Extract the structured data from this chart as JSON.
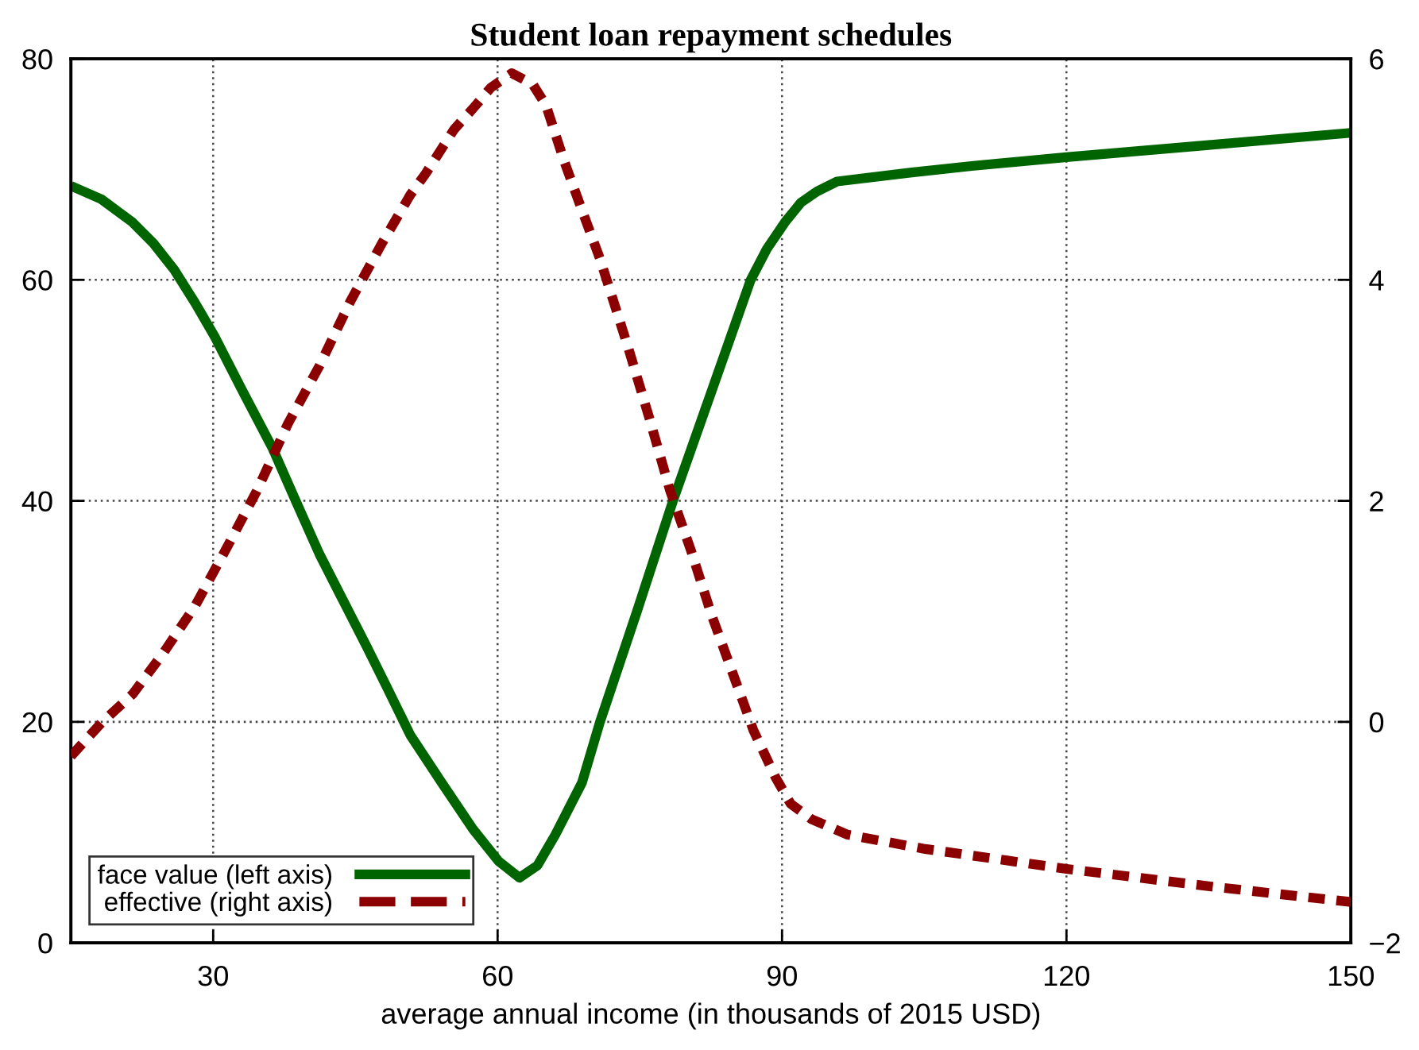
{
  "chart_data": {
    "type": "line",
    "title": "Student loan repayment schedules",
    "xlabel": "average annual income (in thousands of 2015 USD)",
    "xlim": [
      15,
      150
    ],
    "xticks": [
      30,
      60,
      90,
      120,
      150
    ],
    "ylim": [
      0,
      80
    ],
    "yticks": [
      0,
      20,
      40,
      60,
      80
    ],
    "y2lim": [
      -2,
      6
    ],
    "y2ticks": [
      {
        "value": -2,
        "label": "−2"
      },
      0,
      2,
      4,
      6
    ],
    "grid": true,
    "legend": "bottom left",
    "marker": "none",
    "series": [
      {
        "name": "face value (left axis)",
        "color": "#006400",
        "line_style": "solid",
        "x": [
          15,
          18.2,
          21.5,
          23.7,
          25.9,
          28.1,
          30.2,
          33.0,
          36.3,
          38.5,
          41.2,
          43.4,
          46.2,
          48.4,
          50.8,
          54.1,
          57.4,
          60.1,
          62.3,
          64.2,
          66.1,
          68.9,
          70.8,
          74.7,
          78.5,
          82.6,
          86.7,
          88.4,
          90.3,
          92.0,
          93.7,
          95.8,
          103.5,
          110,
          120,
          135,
          150
        ],
        "values": [
          68.5,
          67.3,
          65.2,
          63.3,
          60.9,
          57.9,
          54.8,
          50.1,
          44.7,
          40.4,
          35.2,
          31.5,
          26.8,
          23.0,
          18.8,
          14.5,
          10.3,
          7.4,
          5.9,
          7.0,
          9.8,
          14.5,
          20.0,
          30.0,
          40.0,
          50.0,
          60.0,
          62.8,
          65.2,
          67.0,
          68.0,
          68.9,
          69.7,
          70.3,
          71.1,
          72.2,
          73.3
        ]
      },
      {
        "name": "effective (right axis)",
        "color": "#8b0000",
        "line_style": "dashed",
        "axis": "y2",
        "x": [
          15,
          18.2,
          21.5,
          24.8,
          28.1,
          31.4,
          34.6,
          37.9,
          41.2,
          44.5,
          47.8,
          50.8,
          52.4,
          55.4,
          57.4,
          59.3,
          61.5,
          63.7,
          65.1,
          67.0,
          68.9,
          70.8,
          73.8,
          76.0,
          78.2,
          80.4,
          82.6,
          84.8,
          87.0,
          89.3,
          90.9,
          93.1,
          96.9,
          105.1,
          120,
          135.3,
          150
        ],
        "values": [
          -0.31,
          -0.01,
          0.25,
          0.63,
          1.05,
          1.57,
          2.09,
          2.7,
          3.22,
          3.81,
          4.33,
          4.77,
          4.96,
          5.36,
          5.55,
          5.74,
          5.87,
          5.77,
          5.58,
          5.08,
          4.63,
          4.19,
          3.38,
          2.75,
          2.09,
          1.55,
          0.96,
          0.44,
          -0.08,
          -0.5,
          -0.74,
          -0.88,
          -1.02,
          -1.15,
          -1.33,
          -1.49,
          -1.63
        ]
      }
    ]
  }
}
